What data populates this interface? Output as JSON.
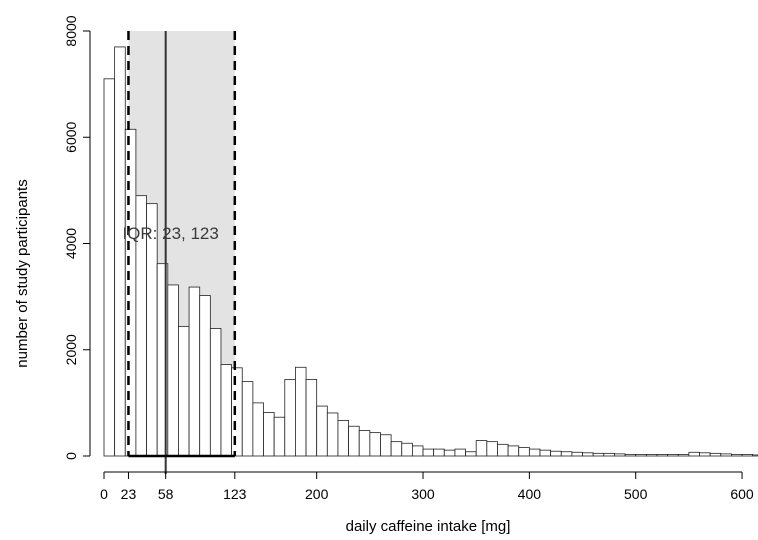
{
  "chart_data": {
    "type": "bar",
    "bin_width": 10,
    "bin_start": 0,
    "values": [
      7100,
      7700,
      6150,
      4900,
      4750,
      3620,
      3220,
      2440,
      3180,
      3020,
      2400,
      1720,
      1660,
      1400,
      1000,
      820,
      730,
      1440,
      1670,
      1440,
      940,
      810,
      670,
      560,
      480,
      440,
      400,
      270,
      240,
      190,
      130,
      130,
      110,
      130,
      80,
      290,
      270,
      220,
      190,
      160,
      130,
      110,
      90,
      80,
      70,
      60,
      50,
      50,
      40,
      30,
      30,
      30,
      30,
      30,
      30,
      70,
      60,
      50,
      40,
      30,
      30,
      20
    ],
    "xlabel": "daily caffeine intake [mg]",
    "ylabel": "number of study participants",
    "xlim": [
      0,
      615
    ],
    "ylim": [
      0,
      8000
    ],
    "x_ticks": [
      0,
      23,
      58,
      123,
      200,
      300,
      400,
      500,
      600
    ],
    "x_tick_labels": [
      "0",
      "23",
      "58",
      "123",
      "200",
      "300",
      "400",
      "500",
      "600"
    ],
    "y_ticks": [
      0,
      2000,
      4000,
      6000,
      8000
    ],
    "y_tick_labels": [
      "0",
      "2000",
      "4000",
      "6000",
      "8000"
    ],
    "iqr": {
      "q1": 23,
      "median": 58,
      "q3": 123,
      "label": "IQR: 23, 123",
      "label_y": 4200
    },
    "colors": {
      "iqr_fill": "#d4d4d4",
      "bar_fill": "#ffffff",
      "bar_stroke": "#222222",
      "lines": "#000000"
    },
    "grid": false
  }
}
